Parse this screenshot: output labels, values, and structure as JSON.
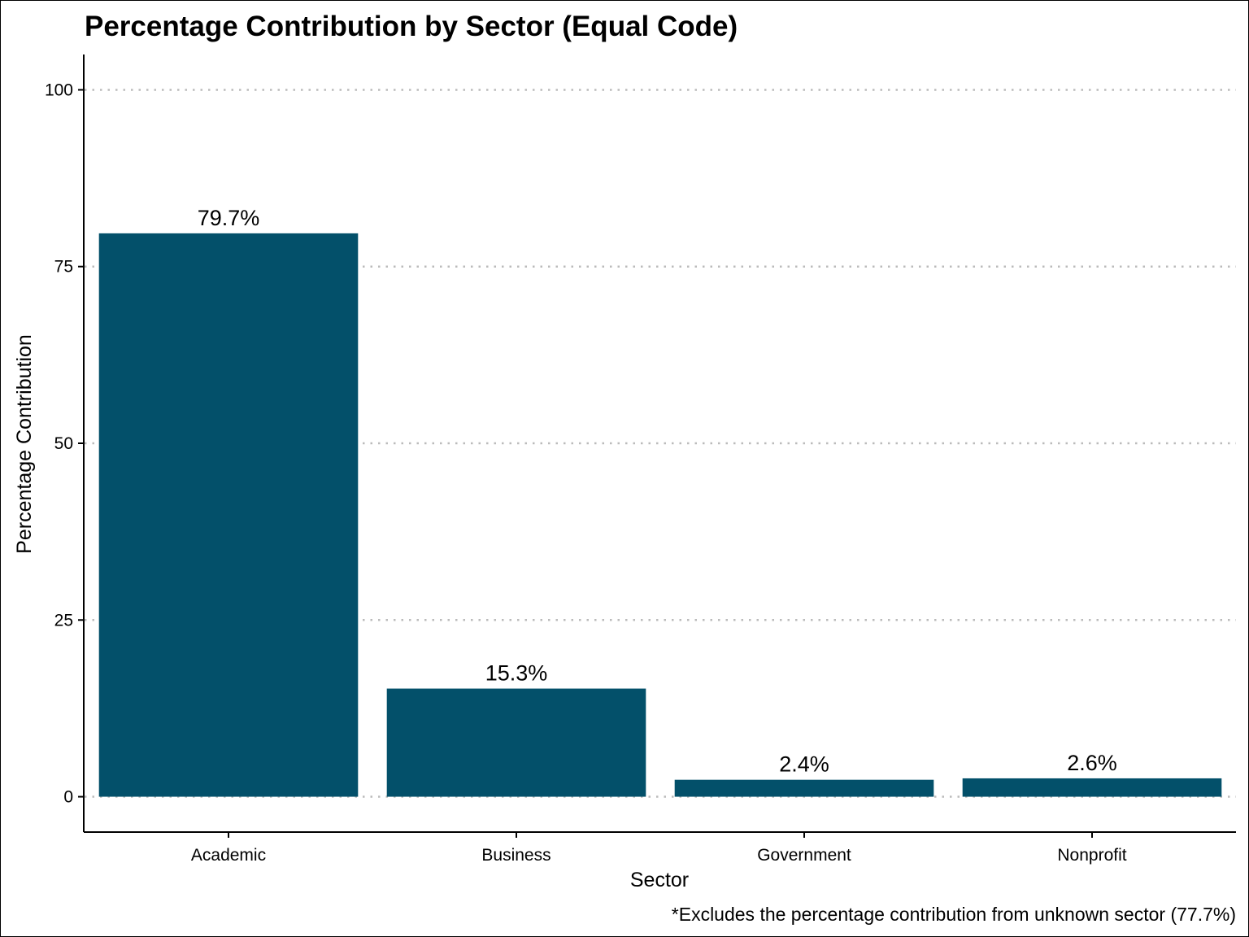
{
  "chart_data": {
    "type": "bar",
    "title": "Percentage Contribution by Sector (Equal Code)",
    "xlabel": "Sector",
    "ylabel": "Percentage Contribution",
    "categories": [
      "Academic",
      "Business",
      "Government",
      "Nonprofit"
    ],
    "values": [
      79.7,
      15.3,
      2.4,
      2.6
    ],
    "value_labels": [
      "79.7%",
      "15.3%",
      "2.4%",
      "2.6%"
    ],
    "ylim": [
      -5,
      105
    ],
    "yticks": [
      0,
      25,
      50,
      75,
      100
    ],
    "ytick_labels": [
      "0",
      "25",
      "50",
      "75",
      "100"
    ],
    "grid": "horizontal dotted",
    "bar_color": "#03506A",
    "grid_color": "#BBBBBB",
    "caption": "*Excludes the percentage contribution from unknown sector (77.7%)"
  }
}
